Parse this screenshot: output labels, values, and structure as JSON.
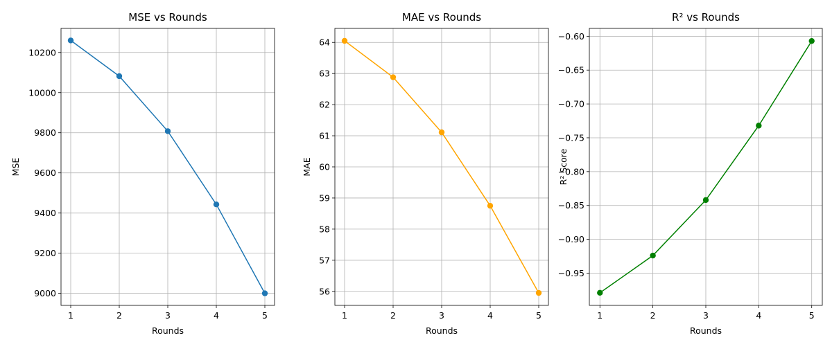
{
  "chart_data": [
    {
      "type": "line",
      "title": "MSE vs Rounds",
      "xlabel": "Rounds",
      "ylabel": "MSE",
      "color": "#1f77b4",
      "grid": true,
      "x": [
        1,
        2,
        3,
        4,
        5
      ],
      "values": [
        10260,
        10082,
        9808,
        9443,
        9000
      ],
      "ylim": [
        8940,
        10320
      ],
      "yticks": [
        9000,
        9200,
        9400,
        9600,
        9800,
        10000,
        10200
      ],
      "ytick_labels": [
        "9000",
        "9200",
        "9400",
        "9600",
        "9800",
        "10000",
        "10200"
      ],
      "xticks": [
        1,
        2,
        3,
        4,
        5
      ],
      "xtick_labels": [
        "1",
        "2",
        "3",
        "4",
        "5"
      ]
    },
    {
      "type": "line",
      "title": "MAE vs Rounds",
      "xlabel": "Rounds",
      "ylabel": "MAE",
      "color": "#ffa500",
      "grid": true,
      "x": [
        1,
        2,
        3,
        4,
        5
      ],
      "values": [
        64.05,
        62.88,
        61.11,
        58.75,
        55.95
      ],
      "ylim": [
        55.55,
        64.45
      ],
      "yticks": [
        56,
        57,
        58,
        59,
        60,
        61,
        62,
        63,
        64
      ],
      "ytick_labels": [
        "56",
        "57",
        "58",
        "59",
        "60",
        "61",
        "62",
        "63",
        "64"
      ],
      "xticks": [
        1,
        2,
        3,
        4,
        5
      ],
      "xtick_labels": [
        "1",
        "2",
        "3",
        "4",
        "5"
      ]
    },
    {
      "type": "line",
      "title": "R² vs Rounds",
      "xlabel": "Rounds",
      "ylabel": "R² Score",
      "color": "#008000",
      "grid": true,
      "x": [
        1,
        2,
        3,
        4,
        5
      ],
      "values": [
        -0.979,
        -0.924,
        -0.842,
        -0.732,
        -0.607
      ],
      "ylim": [
        -0.9976,
        -0.5884
      ],
      "yticks": [
        -0.95,
        -0.9,
        -0.85,
        -0.8,
        -0.75,
        -0.7,
        -0.65,
        -0.6
      ],
      "ytick_labels": [
        "−0.95",
        "−0.90",
        "−0.85",
        "−0.80",
        "−0.75",
        "−0.70",
        "−0.65",
        "−0.60"
      ],
      "xticks": [
        1,
        2,
        3,
        4,
        5
      ],
      "xtick_labels": [
        "1",
        "2",
        "3",
        "4",
        "5"
      ]
    }
  ]
}
